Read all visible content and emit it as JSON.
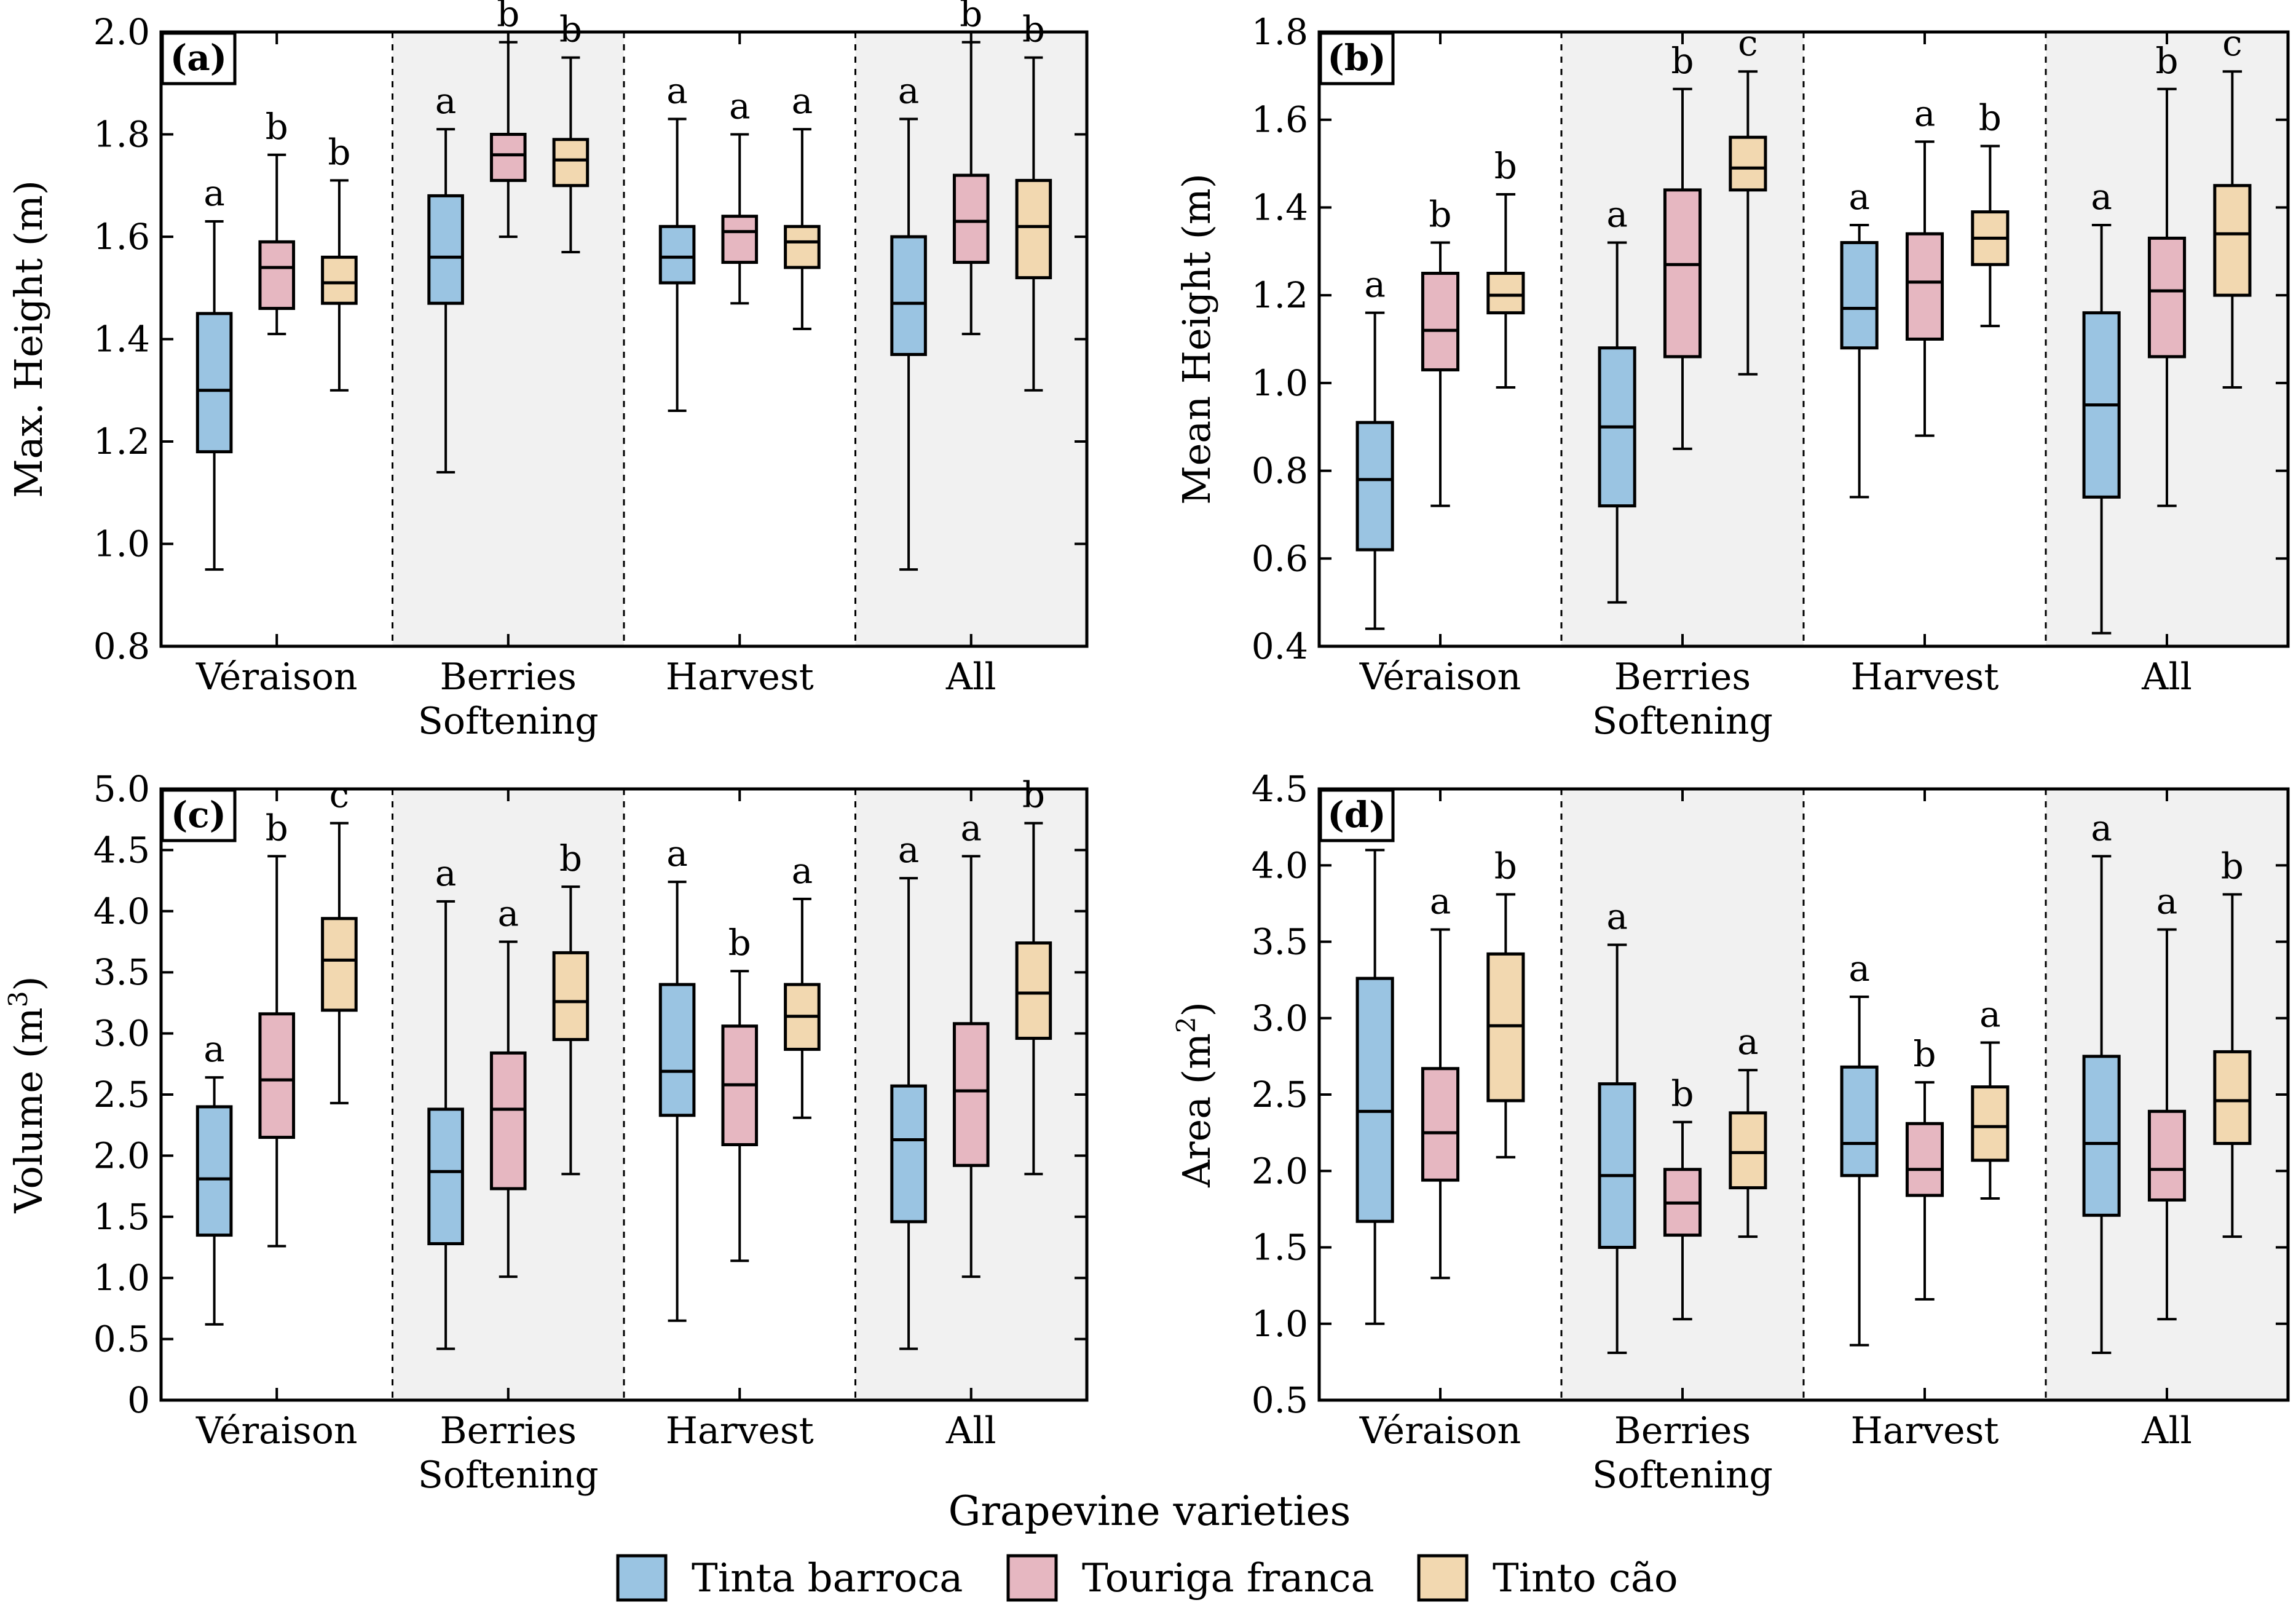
{
  "figure": {
    "xlabel": "Grapevine varieties",
    "legend": [
      {
        "label": "Tinta barroca",
        "color": "#9ac4e2"
      },
      {
        "label": "Touriga franca",
        "color": "#e6b7c1"
      },
      {
        "label": "Tinto cão",
        "color": "#f2d8b0"
      }
    ]
  },
  "chart_data": [
    {
      "type": "box",
      "tag": "(a)",
      "ylabel": "Max. Height (m)",
      "ylabel_sup": "",
      "ylabel_end": "",
      "ylim": [
        0.8,
        2.0
      ],
      "yticks": [
        0.8,
        1.0,
        1.2,
        1.4,
        1.6,
        1.8,
        2.0
      ],
      "ytick_labels": [
        "0.8",
        "1.0",
        "1.2",
        "1.4",
        "1.6",
        "1.8",
        "2.0"
      ],
      "categories": [
        [
          "Véraison"
        ],
        [
          "Berries",
          "Softening"
        ],
        [
          "Harvest"
        ],
        [
          "All"
        ]
      ],
      "shaded": [
        false,
        true,
        false,
        true
      ],
      "series": [
        {
          "name": "Tinta barroca",
          "boxes": [
            {
              "min": 0.95,
              "q1": 1.18,
              "median": 1.3,
              "q3": 1.45,
              "max": 1.63,
              "letter": "a"
            },
            {
              "min": 1.14,
              "q1": 1.47,
              "median": 1.56,
              "q3": 1.68,
              "max": 1.81,
              "letter": "a"
            },
            {
              "min": 1.26,
              "q1": 1.51,
              "median": 1.56,
              "q3": 1.62,
              "max": 1.83,
              "letter": "a"
            },
            {
              "min": 0.95,
              "q1": 1.37,
              "median": 1.47,
              "q3": 1.6,
              "max": 1.83,
              "letter": "a"
            }
          ]
        },
        {
          "name": "Touriga franca",
          "boxes": [
            {
              "min": 1.41,
              "q1": 1.46,
              "median": 1.54,
              "q3": 1.59,
              "max": 1.76,
              "letter": "b"
            },
            {
              "min": 1.6,
              "q1": 1.71,
              "median": 1.76,
              "q3": 1.8,
              "max": 1.98,
              "letter": "b"
            },
            {
              "min": 1.47,
              "q1": 1.55,
              "median": 1.61,
              "q3": 1.64,
              "max": 1.8,
              "letter": "a"
            },
            {
              "min": 1.41,
              "q1": 1.55,
              "median": 1.63,
              "q3": 1.72,
              "max": 1.98,
              "letter": "b"
            }
          ]
        },
        {
          "name": "Tinto cão",
          "boxes": [
            {
              "min": 1.3,
              "q1": 1.47,
              "median": 1.51,
              "q3": 1.56,
              "max": 1.71,
              "letter": "b"
            },
            {
              "min": 1.57,
              "q1": 1.7,
              "median": 1.75,
              "q3": 1.79,
              "max": 1.95,
              "letter": "b"
            },
            {
              "min": 1.42,
              "q1": 1.54,
              "median": 1.59,
              "q3": 1.62,
              "max": 1.81,
              "letter": "a"
            },
            {
              "min": 1.3,
              "q1": 1.52,
              "median": 1.62,
              "q3": 1.71,
              "max": 1.95,
              "letter": "b"
            }
          ]
        }
      ]
    },
    {
      "type": "box",
      "tag": "(b)",
      "ylabel": "Mean Height (m)",
      "ylabel_sup": "",
      "ylabel_end": "",
      "ylim": [
        0.4,
        1.8
      ],
      "yticks": [
        0.4,
        0.6,
        0.8,
        1.0,
        1.2,
        1.4,
        1.6,
        1.8
      ],
      "ytick_labels": [
        "0.4",
        "0.6",
        "0.8",
        "1.0",
        "1.2",
        "1.4",
        "1.6",
        "1.8"
      ],
      "categories": [
        [
          "Véraison"
        ],
        [
          "Berries",
          "Softening"
        ],
        [
          "Harvest"
        ],
        [
          "All"
        ]
      ],
      "shaded": [
        false,
        true,
        false,
        true
      ],
      "series": [
        {
          "name": "Tinta barroca",
          "boxes": [
            {
              "min": 0.44,
              "q1": 0.62,
              "median": 0.78,
              "q3": 0.91,
              "max": 1.16,
              "letter": "a"
            },
            {
              "min": 0.5,
              "q1": 0.72,
              "median": 0.9,
              "q3": 1.08,
              "max": 1.32,
              "letter": "a"
            },
            {
              "min": 0.74,
              "q1": 1.08,
              "median": 1.17,
              "q3": 1.32,
              "max": 1.36,
              "letter": "a"
            },
            {
              "min": 0.43,
              "q1": 0.74,
              "median": 0.95,
              "q3": 1.16,
              "max": 1.36,
              "letter": "a"
            }
          ]
        },
        {
          "name": "Touriga franca",
          "boxes": [
            {
              "min": 0.72,
              "q1": 1.03,
              "median": 1.12,
              "q3": 1.25,
              "max": 1.32,
              "letter": "b"
            },
            {
              "min": 0.85,
              "q1": 1.06,
              "median": 1.27,
              "q3": 1.44,
              "max": 1.67,
              "letter": "b"
            },
            {
              "min": 0.88,
              "q1": 1.1,
              "median": 1.23,
              "q3": 1.34,
              "max": 1.55,
              "letter": "a"
            },
            {
              "min": 0.72,
              "q1": 1.06,
              "median": 1.21,
              "q3": 1.33,
              "max": 1.67,
              "letter": "b"
            }
          ]
        },
        {
          "name": "Tinto cão",
          "boxes": [
            {
              "min": 0.99,
              "q1": 1.16,
              "median": 1.2,
              "q3": 1.25,
              "max": 1.43,
              "letter": "b"
            },
            {
              "min": 1.02,
              "q1": 1.44,
              "median": 1.49,
              "q3": 1.56,
              "max": 1.71,
              "letter": "c"
            },
            {
              "min": 1.13,
              "q1": 1.27,
              "median": 1.33,
              "q3": 1.39,
              "max": 1.54,
              "letter": "b"
            },
            {
              "min": 0.99,
              "q1": 1.2,
              "median": 1.34,
              "q3": 1.45,
              "max": 1.71,
              "letter": "c"
            }
          ]
        }
      ]
    },
    {
      "type": "box",
      "tag": "(c)",
      "ylabel": "Volume (m",
      "ylabel_sup": "3",
      "ylabel_end": ")",
      "ylim": [
        0,
        5.0
      ],
      "yticks": [
        0,
        0.5,
        1.0,
        1.5,
        2.0,
        2.5,
        3.0,
        3.5,
        4.0,
        4.5,
        5.0
      ],
      "ytick_labels": [
        "0",
        "0.5",
        "1.0",
        "1.5",
        "2.0",
        "2.5",
        "3.0",
        "3.5",
        "4.0",
        "4.5",
        "5.0"
      ],
      "categories": [
        [
          "Véraison"
        ],
        [
          "Berries",
          "Softening"
        ],
        [
          "Harvest"
        ],
        [
          "All"
        ]
      ],
      "shaded": [
        false,
        true,
        false,
        true
      ],
      "series": [
        {
          "name": "Tinta barroca",
          "boxes": [
            {
              "min": 0.62,
              "q1": 1.35,
              "median": 1.81,
              "q3": 2.4,
              "max": 2.64,
              "letter": "a"
            },
            {
              "min": 0.42,
              "q1": 1.28,
              "median": 1.87,
              "q3": 2.38,
              "max": 4.08,
              "letter": "a"
            },
            {
              "min": 0.65,
              "q1": 2.33,
              "median": 2.69,
              "q3": 3.4,
              "max": 4.24,
              "letter": "a"
            },
            {
              "min": 0.42,
              "q1": 1.46,
              "median": 2.13,
              "q3": 2.57,
              "max": 4.27,
              "letter": "a"
            }
          ]
        },
        {
          "name": "Touriga franca",
          "boxes": [
            {
              "min": 1.26,
              "q1": 2.15,
              "median": 2.62,
              "q3": 3.16,
              "max": 4.45,
              "letter": "b"
            },
            {
              "min": 1.01,
              "q1": 1.73,
              "median": 2.38,
              "q3": 2.84,
              "max": 3.75,
              "letter": "a"
            },
            {
              "min": 1.14,
              "q1": 2.09,
              "median": 2.58,
              "q3": 3.06,
              "max": 3.51,
              "letter": "b"
            },
            {
              "min": 1.01,
              "q1": 1.92,
              "median": 2.53,
              "q3": 3.08,
              "max": 4.45,
              "letter": "a"
            }
          ]
        },
        {
          "name": "Tinto cão",
          "boxes": [
            {
              "min": 2.43,
              "q1": 3.19,
              "median": 3.6,
              "q3": 3.94,
              "max": 4.72,
              "letter": "c"
            },
            {
              "min": 1.85,
              "q1": 2.95,
              "median": 3.26,
              "q3": 3.66,
              "max": 4.2,
              "letter": "b"
            },
            {
              "min": 2.31,
              "q1": 2.87,
              "median": 3.14,
              "q3": 3.4,
              "max": 4.1,
              "letter": "a"
            },
            {
              "min": 1.85,
              "q1": 2.96,
              "median": 3.33,
              "q3": 3.74,
              "max": 4.72,
              "letter": "b"
            }
          ]
        }
      ]
    },
    {
      "type": "box",
      "tag": "(d)",
      "ylabel": "Area (m",
      "ylabel_sup": "2",
      "ylabel_end": ")",
      "ylim": [
        0.5,
        4.5
      ],
      "yticks": [
        0.5,
        1.0,
        1.5,
        2.0,
        2.5,
        3.0,
        3.5,
        4.0,
        4.5
      ],
      "ytick_labels": [
        "0.5",
        "1.0",
        "1.5",
        "2.0",
        "2.5",
        "3.0",
        "3.5",
        "4.0",
        "4.5"
      ],
      "categories": [
        [
          "Véraison"
        ],
        [
          "Berries",
          "Softening"
        ],
        [
          "Harvest"
        ],
        [
          "All"
        ]
      ],
      "shaded": [
        false,
        true,
        false,
        true
      ],
      "series": [
        {
          "name": "Tinta barroca",
          "boxes": [
            {
              "min": 1.0,
              "q1": 1.67,
              "median": 2.39,
              "q3": 3.26,
              "max": 4.1,
              "letter": "a"
            },
            {
              "min": 0.81,
              "q1": 1.5,
              "median": 1.97,
              "q3": 2.57,
              "max": 3.48,
              "letter": "a"
            },
            {
              "min": 0.86,
              "q1": 1.97,
              "median": 2.18,
              "q3": 2.68,
              "max": 3.14,
              "letter": "a"
            },
            {
              "min": 0.81,
              "q1": 1.71,
              "median": 2.18,
              "q3": 2.75,
              "max": 4.06,
              "letter": "a"
            }
          ]
        },
        {
          "name": "Touriga franca",
          "boxes": [
            {
              "min": 1.3,
              "q1": 1.94,
              "median": 2.25,
              "q3": 2.67,
              "max": 3.58,
              "letter": "a"
            },
            {
              "min": 1.03,
              "q1": 1.58,
              "median": 1.79,
              "q3": 2.01,
              "max": 2.32,
              "letter": "b"
            },
            {
              "min": 1.16,
              "q1": 1.84,
              "median": 2.01,
              "q3": 2.31,
              "max": 2.58,
              "letter": "b"
            },
            {
              "min": 1.03,
              "q1": 1.81,
              "median": 2.01,
              "q3": 2.39,
              "max": 3.58,
              "letter": "a"
            }
          ]
        },
        {
          "name": "Tinto cão",
          "boxes": [
            {
              "min": 2.09,
              "q1": 2.46,
              "median": 2.95,
              "q3": 3.42,
              "max": 3.81,
              "letter": "b"
            },
            {
              "min": 1.57,
              "q1": 1.89,
              "median": 2.12,
              "q3": 2.38,
              "max": 2.66,
              "letter": "a"
            },
            {
              "min": 1.82,
              "q1": 2.07,
              "median": 2.29,
              "q3": 2.55,
              "max": 2.84,
              "letter": "a"
            },
            {
              "min": 1.57,
              "q1": 2.18,
              "median": 2.46,
              "q3": 2.78,
              "max": 3.81,
              "letter": "b"
            }
          ]
        }
      ]
    }
  ]
}
